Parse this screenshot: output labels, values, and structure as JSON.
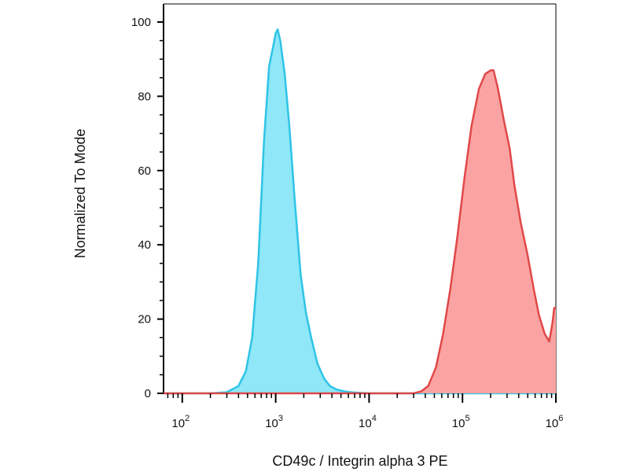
{
  "chart_data": {
    "type": "area",
    "xlabel": "CD49c / Integrin alpha 3 PE",
    "ylabel": "Normalized To Mode",
    "x_scale": "log",
    "xlim": [
      63,
      1000000
    ],
    "ylim": [
      0,
      100
    ],
    "x_ticks": [
      {
        "base": "10",
        "exp": "2",
        "value": 100
      },
      {
        "base": "10",
        "exp": "3",
        "value": 1000
      },
      {
        "base": "10",
        "exp": "4",
        "value": 10000
      },
      {
        "base": "10",
        "exp": "5",
        "value": 100000
      },
      {
        "base": "10",
        "exp": "6",
        "value": 1000000
      }
    ],
    "y_ticks": [
      {
        "label": "0",
        "value": 0
      },
      {
        "label": "20",
        "value": 20
      },
      {
        "label": "40",
        "value": 40
      },
      {
        "label": "60",
        "value": 60
      },
      {
        "label": "80",
        "value": 80
      },
      {
        "label": "100",
        "value": 100
      }
    ],
    "grid": false,
    "legend": "none",
    "series": [
      {
        "color_line": "#2EC4E6",
        "color_fill": "#8FE7F7",
        "points": [
          [
            63,
            0
          ],
          [
            200,
            0
          ],
          [
            300,
            0.3
          ],
          [
            400,
            2
          ],
          [
            480,
            6
          ],
          [
            560,
            15
          ],
          [
            650,
            35
          ],
          [
            750,
            68
          ],
          [
            850,
            88
          ],
          [
            950,
            94
          ],
          [
            1000,
            97
          ],
          [
            1050,
            98
          ],
          [
            1120,
            95
          ],
          [
            1250,
            86
          ],
          [
            1400,
            72
          ],
          [
            1600,
            52
          ],
          [
            1850,
            32
          ],
          [
            2100,
            22
          ],
          [
            2400,
            15
          ],
          [
            2800,
            8
          ],
          [
            3300,
            4
          ],
          [
            3800,
            2
          ],
          [
            4500,
            1
          ],
          [
            5500,
            0.5
          ],
          [
            7000,
            0.2
          ],
          [
            10000,
            0
          ],
          [
            100000,
            0
          ],
          [
            1000000,
            0
          ]
        ]
      },
      {
        "color_line": "#E04848",
        "color_fill": "#FBA3A3",
        "points": [
          [
            63,
            0
          ],
          [
            30000,
            0
          ],
          [
            36000,
            0.5
          ],
          [
            43000,
            2
          ],
          [
            52000,
            7
          ],
          [
            62000,
            16
          ],
          [
            74000,
            28
          ],
          [
            88000,
            42
          ],
          [
            105000,
            58
          ],
          [
            125000,
            72
          ],
          [
            150000,
            82
          ],
          [
            175000,
            86
          ],
          [
            200000,
            87
          ],
          [
            215000,
            87
          ],
          [
            240000,
            82
          ],
          [
            275000,
            74
          ],
          [
            320000,
            66
          ],
          [
            360000,
            56
          ],
          [
            420000,
            46
          ],
          [
            500000,
            37
          ],
          [
            580000,
            28
          ],
          [
            660000,
            21
          ],
          [
            760000,
            16
          ],
          [
            850000,
            14
          ],
          [
            920000,
            19
          ],
          [
            960000,
            23
          ],
          [
            1000000,
            23
          ]
        ]
      }
    ]
  }
}
